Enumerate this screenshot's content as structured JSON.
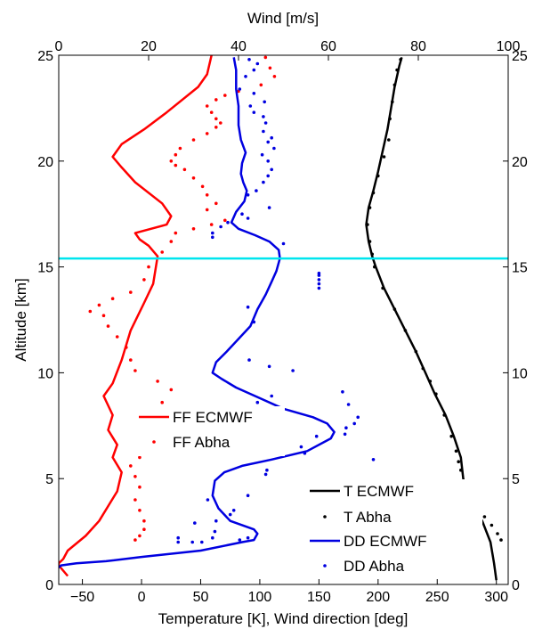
{
  "chart_data": {
    "type": "line",
    "title": "",
    "axes": {
      "bottom": {
        "label": "Temperature [K], Wind direction [deg]",
        "range": [
          -70,
          310
        ],
        "ticks": [
          -50,
          0,
          50,
          100,
          150,
          200,
          250,
          300
        ],
        "tick_labels": [
          "−50",
          "0",
          "50",
          "100",
          "150",
          "200",
          "250",
          "300"
        ]
      },
      "top": {
        "label": "Wind [m/s]",
        "range": [
          0,
          100
        ],
        "ticks": [
          0,
          20,
          40,
          60,
          80,
          100
        ],
        "tick_labels": [
          "0",
          "20",
          "40",
          "60",
          "80",
          "100"
        ]
      },
      "left": {
        "label": "Altitude [km]",
        "range": [
          0,
          25
        ],
        "ticks": [
          0,
          5,
          10,
          15,
          20,
          25
        ],
        "tick_labels": [
          "0",
          "5",
          "10",
          "15",
          "20",
          "25"
        ]
      },
      "right": {
        "range": [
          0,
          25
        ],
        "ticks": [
          0,
          5,
          10,
          15,
          20,
          25
        ],
        "tick_labels": [
          "0",
          "5",
          "10",
          "15",
          "20",
          "25"
        ]
      }
    },
    "hline": {
      "y": 15.4,
      "color": "#00e5ee"
    },
    "legends": [
      {
        "position": "center-left",
        "entries": [
          {
            "label": "FF ECMWF",
            "series": "ff_ecmwf"
          },
          {
            "label": "FF Abha",
            "series": "ff_abha"
          }
        ]
      },
      {
        "position": "bottom-right",
        "entries": [
          {
            "label": "T ECMWF",
            "series": "t_ecmwf"
          },
          {
            "label": "T Abha",
            "series": "t_abha"
          },
          {
            "label": "DD ECMWF",
            "series": "dd_ecmwf"
          },
          {
            "label": "DD Abha",
            "series": "dd_abha"
          }
        ]
      }
    ],
    "series": [
      {
        "key": "ff_ecmwf",
        "name": "FF ECMWF",
        "style": "line",
        "color": "#ff0000",
        "x_axis": "top",
        "points": [
          [
            2,
            0.4
          ],
          [
            0,
            0.9
          ],
          [
            0,
            1.0
          ],
          [
            1,
            1.2
          ],
          [
            2,
            1.6
          ],
          [
            6,
            2.3
          ],
          [
            9,
            3.0
          ],
          [
            11,
            3.7
          ],
          [
            13,
            4.4
          ],
          [
            14,
            5.3
          ],
          [
            12,
            6.0
          ],
          [
            13,
            6.6
          ],
          [
            11,
            7.3
          ],
          [
            12,
            8.0
          ],
          [
            10,
            8.9
          ],
          [
            12,
            9.5
          ],
          [
            14,
            10.6
          ],
          [
            16,
            12.0
          ],
          [
            19,
            13.3
          ],
          [
            21,
            14.2
          ],
          [
            22,
            15.5
          ],
          [
            20,
            16.0
          ],
          [
            18,
            16.3
          ],
          [
            17,
            16.6
          ],
          [
            24,
            17.0
          ],
          [
            25,
            17.4
          ],
          [
            23,
            18.0
          ],
          [
            17,
            19.0
          ],
          [
            14,
            19.7
          ],
          [
            12,
            20.2
          ],
          [
            14,
            20.8
          ],
          [
            19,
            21.5
          ],
          [
            24,
            22.3
          ],
          [
            31,
            23.5
          ],
          [
            33,
            24.1
          ],
          [
            34,
            25.0
          ]
        ]
      },
      {
        "key": "ff_abha",
        "name": "FF Abha",
        "style": "dots",
        "color": "#ff0000",
        "x_axis": "top",
        "points": [
          [
            17,
            2.1
          ],
          [
            18,
            2.3
          ],
          [
            19,
            2.6
          ],
          [
            19,
            3.0
          ],
          [
            18,
            3.5
          ],
          [
            17,
            4.0
          ],
          [
            18,
            4.6
          ],
          [
            17,
            5.1
          ],
          [
            16,
            5.6
          ],
          [
            18,
            6.0
          ],
          [
            19,
            6.6
          ],
          [
            20,
            7.0
          ],
          [
            24,
            7.3
          ],
          [
            21,
            7.6
          ],
          [
            22,
            8.1
          ],
          [
            23,
            8.6
          ],
          [
            25,
            9.2
          ],
          [
            22,
            9.6
          ],
          [
            17,
            10.1
          ],
          [
            16,
            10.6
          ],
          [
            15,
            11.2
          ],
          [
            13,
            11.7
          ],
          [
            11,
            12.2
          ],
          [
            10,
            12.7
          ],
          [
            7,
            12.9
          ],
          [
            9,
            13.2
          ],
          [
            12,
            13.5
          ],
          [
            16,
            13.8
          ],
          [
            19,
            14.4
          ],
          [
            20,
            15.0
          ],
          [
            23,
            15.7
          ],
          [
            25,
            16.2
          ],
          [
            26,
            16.6
          ],
          [
            30,
            16.8
          ],
          [
            34,
            17.0
          ],
          [
            37,
            17.2
          ],
          [
            33,
            17.7
          ],
          [
            35,
            18.0
          ],
          [
            33,
            18.4
          ],
          [
            32,
            18.8
          ],
          [
            30,
            19.2
          ],
          [
            28,
            19.6
          ],
          [
            26,
            19.8
          ],
          [
            25,
            20.0
          ],
          [
            26,
            20.3
          ],
          [
            27,
            20.6
          ],
          [
            30,
            21.0
          ],
          [
            33,
            21.3
          ],
          [
            35,
            21.6
          ],
          [
            36,
            21.8
          ],
          [
            35,
            22.0
          ],
          [
            34,
            22.3
          ],
          [
            33,
            22.6
          ],
          [
            35,
            22.9
          ],
          [
            37,
            23.1
          ],
          [
            40,
            23.3
          ],
          [
            45,
            23.6
          ],
          [
            48,
            24.0
          ],
          [
            47,
            24.4
          ],
          [
            46,
            24.9
          ]
        ]
      },
      {
        "key": "t_ecmwf",
        "name": "T ECMWF",
        "style": "line",
        "color": "#000000",
        "x_axis": "bottom",
        "points": [
          [
            300,
            0.2
          ],
          [
            298,
            1.0
          ],
          [
            295,
            2.0
          ],
          [
            288,
            3.0
          ],
          [
            278,
            4.0
          ],
          [
            272,
            5.0
          ],
          [
            270,
            6.0
          ],
          [
            264,
            7.0
          ],
          [
            257,
            8.0
          ],
          [
            248,
            9.0
          ],
          [
            240,
            10.0
          ],
          [
            232,
            11.0
          ],
          [
            223,
            12.0
          ],
          [
            214,
            13.0
          ],
          [
            205,
            14.0
          ],
          [
            198,
            15.0
          ],
          [
            195,
            15.5
          ],
          [
            192,
            16.2
          ],
          [
            190,
            17.0
          ],
          [
            192,
            17.8
          ],
          [
            196,
            18.6
          ],
          [
            200,
            19.5
          ],
          [
            204,
            20.5
          ],
          [
            208,
            21.5
          ],
          [
            211,
            22.5
          ],
          [
            214,
            23.5
          ],
          [
            218,
            24.5
          ],
          [
            220,
            24.9
          ]
        ]
      },
      {
        "key": "t_abha",
        "name": "T Abha",
        "style": "dots",
        "color": "#000000",
        "x_axis": "bottom",
        "points": [
          [
            304,
            2.1
          ],
          [
            301,
            2.4
          ],
          [
            296,
            2.8
          ],
          [
            290,
            3.2
          ],
          [
            284,
            3.6
          ],
          [
            278,
            4.1
          ],
          [
            272,
            4.7
          ],
          [
            270,
            5.4
          ],
          [
            268,
            5.8
          ],
          [
            266,
            6.3
          ],
          [
            262,
            7.0
          ],
          [
            256,
            8.0
          ],
          [
            249,
            9.0
          ],
          [
            244,
            9.6
          ],
          [
            238,
            10.2
          ],
          [
            232,
            11.0
          ],
          [
            223,
            12.0
          ],
          [
            214,
            13.0
          ],
          [
            204,
            14.0
          ],
          [
            197,
            15.0
          ],
          [
            195,
            15.6
          ],
          [
            193,
            16.2
          ],
          [
            191,
            17.0
          ],
          [
            193,
            17.8
          ],
          [
            196,
            18.5
          ],
          [
            200,
            19.3
          ],
          [
            205,
            20.2
          ],
          [
            209,
            21.0
          ],
          [
            210,
            22.0
          ],
          [
            212,
            22.8
          ],
          [
            214,
            23.6
          ],
          [
            216,
            24.3
          ],
          [
            219,
            24.8
          ]
        ]
      },
      {
        "key": "dd_ecmwf",
        "name": "DD ECMWF",
        "style": "line",
        "color": "#0000e0",
        "x_axis": "bottom",
        "points": [
          [
            -70,
            0.8
          ],
          [
            -68,
            0.9
          ],
          [
            -55,
            1.0
          ],
          [
            -30,
            1.1
          ],
          [
            0,
            1.3
          ],
          [
            50,
            1.6
          ],
          [
            85,
            2.0
          ],
          [
            95,
            2.1
          ],
          [
            98,
            2.4
          ],
          [
            95,
            2.6
          ],
          [
            75,
            3.0
          ],
          [
            65,
            3.6
          ],
          [
            60,
            4.2
          ],
          [
            62,
            4.9
          ],
          [
            70,
            5.3
          ],
          [
            85,
            5.6
          ],
          [
            110,
            5.9
          ],
          [
            140,
            6.3
          ],
          [
            160,
            6.9
          ],
          [
            163,
            7.2
          ],
          [
            157,
            7.6
          ],
          [
            145,
            7.9
          ],
          [
            120,
            8.3
          ],
          [
            100,
            8.8
          ],
          [
            80,
            9.3
          ],
          [
            68,
            9.7
          ],
          [
            60,
            10.0
          ],
          [
            63,
            10.5
          ],
          [
            72,
            11.0
          ],
          [
            82,
            11.6
          ],
          [
            92,
            12.2
          ],
          [
            98,
            13.0
          ],
          [
            105,
            13.7
          ],
          [
            110,
            14.3
          ],
          [
            114,
            14.8
          ],
          [
            117,
            15.4
          ],
          [
            116,
            15.8
          ],
          [
            108,
            16.2
          ],
          [
            96,
            16.5
          ],
          [
            82,
            16.8
          ],
          [
            76,
            17.1
          ],
          [
            80,
            17.6
          ],
          [
            87,
            18.1
          ],
          [
            89,
            18.6
          ],
          [
            86,
            19.0
          ],
          [
            84,
            19.4
          ],
          [
            85,
            19.9
          ],
          [
            88,
            20.4
          ],
          [
            84,
            21.0
          ],
          [
            82,
            21.7
          ],
          [
            82,
            22.6
          ],
          [
            80,
            23.4
          ],
          [
            80,
            24.3
          ],
          [
            78,
            24.9
          ]
        ]
      },
      {
        "key": "dd_abha",
        "name": "DD Abha",
        "style": "dots",
        "color": "#0000e0",
        "x_axis": "bottom",
        "points": [
          [
            31,
            2.0
          ],
          [
            31,
            2.2
          ],
          [
            43,
            2.0
          ],
          [
            51,
            2.0
          ],
          [
            60,
            2.2
          ],
          [
            62,
            2.5
          ],
          [
            83,
            2.1
          ],
          [
            90,
            2.2
          ],
          [
            45,
            2.9
          ],
          [
            63,
            3.0
          ],
          [
            75,
            3.3
          ],
          [
            78,
            3.5
          ],
          [
            56,
            4.0
          ],
          [
            90,
            4.2
          ],
          [
            105,
            5.2
          ],
          [
            106,
            5.4
          ],
          [
            138,
            6.2
          ],
          [
            135,
            6.5
          ],
          [
            148,
            7.0
          ],
          [
            172,
            7.1
          ],
          [
            173,
            7.4
          ],
          [
            180,
            7.6
          ],
          [
            183,
            7.9
          ],
          [
            175,
            8.5
          ],
          [
            170,
            9.1
          ],
          [
            196,
            5.9
          ],
          [
            98,
            8.6
          ],
          [
            110,
            8.9
          ],
          [
            128,
            10.1
          ],
          [
            108,
            10.3
          ],
          [
            91,
            10.6
          ],
          [
            95,
            12.4
          ],
          [
            90,
            13.1
          ],
          [
            150,
            14.0
          ],
          [
            150,
            14.2
          ],
          [
            150,
            14.4
          ],
          [
            150,
            14.6
          ],
          [
            150,
            14.7
          ],
          [
            120,
            16.1
          ],
          [
            60,
            16.4
          ],
          [
            60,
            16.6
          ],
          [
            67,
            16.9
          ],
          [
            73,
            17.1
          ],
          [
            85,
            17.5
          ],
          [
            90,
            17.3
          ],
          [
            108,
            17.8
          ],
          [
            90,
            18.4
          ],
          [
            97,
            18.6
          ],
          [
            103,
            19.0
          ],
          [
            107,
            19.3
          ],
          [
            110,
            19.6
          ],
          [
            107,
            20.0
          ],
          [
            102,
            20.3
          ],
          [
            112,
            20.6
          ],
          [
            107,
            20.9
          ],
          [
            110,
            21.1
          ],
          [
            103,
            21.4
          ],
          [
            105,
            21.8
          ],
          [
            103,
            22.1
          ],
          [
            95,
            22.3
          ],
          [
            92,
            22.6
          ],
          [
            104,
            22.8
          ],
          [
            95,
            23.2
          ],
          [
            83,
            23.4
          ],
          [
            88,
            24.0
          ],
          [
            95,
            24.3
          ],
          [
            98,
            24.6
          ],
          [
            91,
            24.8
          ]
        ]
      }
    ]
  }
}
